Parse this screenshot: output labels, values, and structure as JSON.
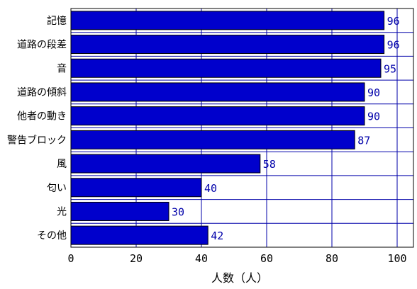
{
  "colors": {
    "bar_fill": "#0000CC",
    "bar_stroke": "#000000",
    "grid": "#0000AA",
    "value_text": "#0000AA",
    "frame": "#000000"
  },
  "chart_data": {
    "type": "bar",
    "orientation": "horizontal",
    "categories": [
      "記憶",
      "道路の段差",
      "音",
      "道路の傾斜",
      "他者の動き",
      "警告ブロック",
      "風",
      "匂い",
      "光",
      "その他"
    ],
    "values": [
      96,
      96,
      95,
      90,
      90,
      87,
      58,
      40,
      30,
      42
    ],
    "value_labels": [
      "96",
      "96",
      "95",
      "90",
      "90",
      "87",
      "58",
      "40",
      "30",
      "42"
    ],
    "title": "",
    "xlabel": "人数（人）",
    "ylabel": "",
    "xlim": [
      0,
      105
    ],
    "x_ticks": [
      0,
      20,
      40,
      60,
      80,
      100
    ],
    "x_tick_labels": [
      "0",
      "20",
      "40",
      "60",
      "80",
      "100"
    ],
    "grid": true,
    "legend": "none"
  }
}
